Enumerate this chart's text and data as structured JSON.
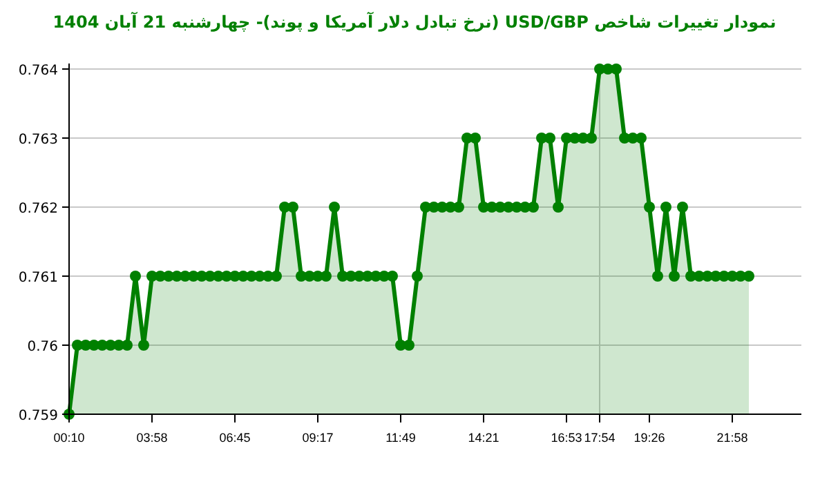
{
  "chart_data": {
    "type": "area",
    "title": "نمودار تغییرات شاخص USD/GBP (نرخ تبادل دلار آمریکا و پوند)- چهارشنبه  21 آبان 1404",
    "categories": [
      "00:10",
      null,
      null,
      null,
      null,
      null,
      null,
      null,
      null,
      null,
      "03:58",
      null,
      null,
      null,
      null,
      null,
      null,
      null,
      null,
      null,
      "06:45",
      null,
      null,
      null,
      null,
      null,
      null,
      null,
      null,
      null,
      "09:17",
      null,
      null,
      null,
      null,
      null,
      null,
      null,
      null,
      null,
      "11:49",
      null,
      null,
      null,
      null,
      null,
      null,
      null,
      null,
      null,
      "14:21",
      null,
      null,
      null,
      null,
      null,
      null,
      null,
      null,
      null,
      "16:53",
      null,
      null,
      null,
      "17:54",
      null,
      null,
      null,
      null,
      null,
      "19:26",
      null,
      null,
      null,
      null,
      null,
      null,
      null,
      null,
      null,
      "21:58",
      null,
      null
    ],
    "series": [
      {
        "color": "#008000",
        "values": [
          0.759,
          0.76,
          0.76,
          0.76,
          0.76,
          0.76,
          0.76,
          0.76,
          0.761,
          0.76,
          0.761,
          0.761,
          0.761,
          0.761,
          0.761,
          0.761,
          0.761,
          0.761,
          0.761,
          0.761,
          0.761,
          0.761,
          0.761,
          0.761,
          0.761,
          0.761,
          0.762,
          0.762,
          0.761,
          0.761,
          0.761,
          0.761,
          0.762,
          0.761,
          0.761,
          0.761,
          0.761,
          0.761,
          0.761,
          0.761,
          0.76,
          0.76,
          0.761,
          0.762,
          0.762,
          0.762,
          0.762,
          0.762,
          0.763,
          0.763,
          0.762,
          0.762,
          0.762,
          0.762,
          0.762,
          0.762,
          0.762,
          0.763,
          0.763,
          0.762,
          0.763,
          0.763,
          0.763,
          0.763,
          0.764,
          0.764,
          0.764,
          0.763,
          0.763,
          0.763,
          0.762,
          0.761,
          0.762,
          0.761,
          0.762,
          0.761,
          0.761,
          0.761,
          0.761,
          0.761,
          0.761,
          0.761,
          0.761
        ]
      }
    ],
    "ylim": [
      0.759,
      0.764
    ],
    "yticks": [
      0.759,
      0.76,
      0.761,
      0.762,
      0.763,
      0.764
    ],
    "grid": "y",
    "marker": "circle",
    "ref_lines": [
      {
        "axis": "x",
        "value": "17:54",
        "color": "#c8c8c8"
      }
    ]
  }
}
